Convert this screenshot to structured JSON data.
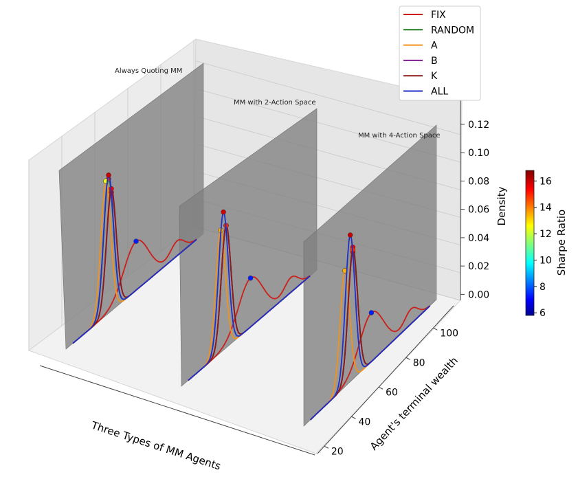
{
  "chart_data": {
    "type": "line",
    "projection": "3d",
    "title": "",
    "xlabel": "Three Types of MM Agents",
    "ylabel": "Agent's terminal wealth",
    "zlabel": "Density",
    "ylim": [
      15,
      115
    ],
    "zlim": [
      -0.01,
      0.135
    ],
    "y_ticks": [
      20,
      40,
      60,
      80,
      100
    ],
    "z_ticks": [
      "0.00",
      "0.02",
      "0.04",
      "0.06",
      "0.08",
      "0.10",
      "0.12"
    ],
    "panels": [
      {
        "label": "Always Quoting MM",
        "series": [
          {
            "name": "FIX",
            "peak_wealth": 66,
            "peak_density": 0.04,
            "sharpe": 7.5
          },
          {
            "name": "RANDOM",
            "peak_wealth": 46,
            "peak_density": 0.11,
            "sharpe": 15.0
          },
          {
            "name": "A",
            "peak_wealth": 44,
            "peak_density": 0.11,
            "sharpe": 12.5
          },
          {
            "name": "B",
            "peak_wealth": 48,
            "peak_density": 0.097,
            "sharpe": 15.5
          },
          {
            "name": "K",
            "peak_wealth": 48,
            "peak_density": 0.1,
            "sharpe": 15.5
          },
          {
            "name": "ALL",
            "peak_wealth": 46,
            "peak_density": 0.113,
            "sharpe": 16.0
          }
        ]
      },
      {
        "label": "MM with 2-Action Space",
        "series": [
          {
            "name": "FIX",
            "peak_wealth": 66,
            "peak_density": 0.04,
            "sharpe": 7.5
          },
          {
            "name": "RANDOM",
            "peak_wealth": 48,
            "peak_density": 0.1,
            "sharpe": 15.5
          },
          {
            "name": "A",
            "peak_wealth": 44,
            "peak_density": 0.1,
            "sharpe": 13.5
          },
          {
            "name": "B",
            "peak_wealth": 48,
            "peak_density": 0.1,
            "sharpe": 15.5
          },
          {
            "name": "K",
            "peak_wealth": 48,
            "peak_density": 0.1,
            "sharpe": 15.0
          },
          {
            "name": "ALL",
            "peak_wealth": 46,
            "peak_density": 0.113,
            "sharpe": 16.0
          }
        ]
      },
      {
        "label": "MM with 4-Action Space",
        "series": [
          {
            "name": "FIX",
            "peak_wealth": 66,
            "peak_density": 0.04,
            "sharpe": 7.5
          },
          {
            "name": "RANDOM",
            "peak_wealth": 52,
            "peak_density": 0.108,
            "sharpe": 15.5
          },
          {
            "name": "A",
            "peak_wealth": 46,
            "peak_density": 0.095,
            "sharpe": 13.5
          },
          {
            "name": "B",
            "peak_wealth": 52,
            "peak_density": 0.104,
            "sharpe": 15.5
          },
          {
            "name": "K",
            "peak_wealth": 52,
            "peak_density": 0.106,
            "sharpe": 15.0
          },
          {
            "name": "ALL",
            "peak_wealth": 50,
            "peak_density": 0.12,
            "sharpe": 16.0
          }
        ]
      }
    ],
    "legend": [
      {
        "name": "FIX",
        "color": "#cc1f1a"
      },
      {
        "name": "RANDOM",
        "color": "#1e7a1e"
      },
      {
        "name": "A",
        "color": "#f0921b"
      },
      {
        "name": "B",
        "color": "#7a1f8c"
      },
      {
        "name": "K",
        "color": "#8b1a1a"
      },
      {
        "name": "ALL",
        "color": "#1f2fc7"
      }
    ],
    "legend_position": "top-right",
    "colorbar": {
      "label": "Sharpe Ratio",
      "ticks": [
        "6",
        "8",
        "10",
        "12",
        "14",
        "16"
      ],
      "range": [
        5.8,
        16.8
      ],
      "colormap": "jet"
    }
  }
}
